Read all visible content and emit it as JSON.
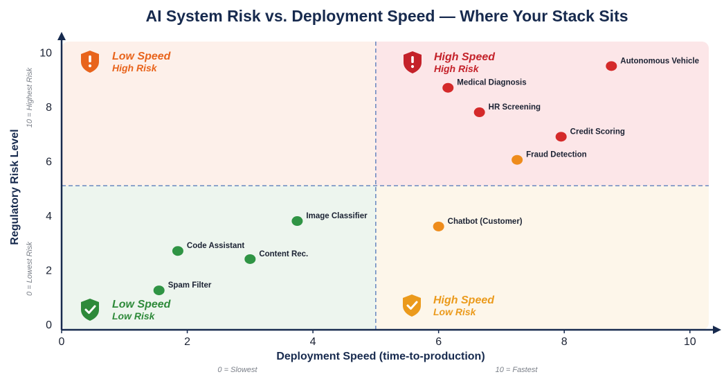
{
  "chart_data": {
    "type": "scatter",
    "title": "AI System Risk vs. Deployment Speed — Where Your Stack Sits",
    "xlabel": "Deployment Speed (time-to-production)",
    "ylabel": "Regulatory Risk Level",
    "xlim": [
      0,
      10.3
    ],
    "ylim": [
      -0.2,
      10.4
    ],
    "xticks": [
      0,
      2,
      4,
      6,
      8,
      10
    ],
    "yticks": [
      0,
      2,
      4,
      6,
      8,
      10
    ],
    "x_notes": {
      "low": "0 = Slowest",
      "high": "10 = Fastest"
    },
    "y_notes": {
      "low": "0 = Lowest Risk",
      "high": "10 = Highest Risk"
    },
    "divider": {
      "x": 5,
      "y": 5.1
    },
    "quadrants": [
      {
        "id": "top-left",
        "line1": "Low Speed",
        "line2": "High Risk",
        "color": "#e8641c",
        "fill": "#fdf0ea",
        "icon": "warning-shield-icon"
      },
      {
        "id": "top-right",
        "line1": "High Speed",
        "line2": "High Risk",
        "color": "#c4222a",
        "fill": "#fce6e8",
        "icon": "warning-shield-icon"
      },
      {
        "id": "bottom-left",
        "line1": "Low Speed",
        "line2": "Low Risk",
        "color": "#2e8a3a",
        "fill": "#edf5ee",
        "icon": "check-shield-icon"
      },
      {
        "id": "bottom-right",
        "line1": "High Speed",
        "line2": "Low Risk",
        "color": "#eb9a1c",
        "fill": "#fdf6ea",
        "icon": "check-shield-icon"
      }
    ],
    "points": [
      {
        "label": "Autonomous Vehicle",
        "x": 8.75,
        "y": 9.5,
        "color": "#d42a2a"
      },
      {
        "label": "Medical Diagnosis",
        "x": 6.15,
        "y": 8.7,
        "color": "#d42a2a"
      },
      {
        "label": "HR Screening",
        "x": 6.65,
        "y": 7.8,
        "color": "#d42a2a"
      },
      {
        "label": "Credit Scoring",
        "x": 7.95,
        "y": 6.9,
        "color": "#d42a2a"
      },
      {
        "label": "Fraud Detection",
        "x": 7.25,
        "y": 6.05,
        "color": "#ee8c1c"
      },
      {
        "label": "Chatbot (Customer)",
        "x": 6.0,
        "y": 3.6,
        "color": "#ee8c1c"
      },
      {
        "label": "Image Classifier",
        "x": 3.75,
        "y": 3.8,
        "color": "#2f9444"
      },
      {
        "label": "Code Assistant",
        "x": 1.85,
        "y": 2.7,
        "color": "#2f9444"
      },
      {
        "label": "Content Rec.",
        "x": 3.0,
        "y": 2.4,
        "color": "#2f9444"
      },
      {
        "label": "Spam Filter",
        "x": 1.55,
        "y": 1.25,
        "color": "#2f9444"
      }
    ],
    "colors": {
      "axis": "#172a4e",
      "divider": "#4d74b8"
    }
  }
}
